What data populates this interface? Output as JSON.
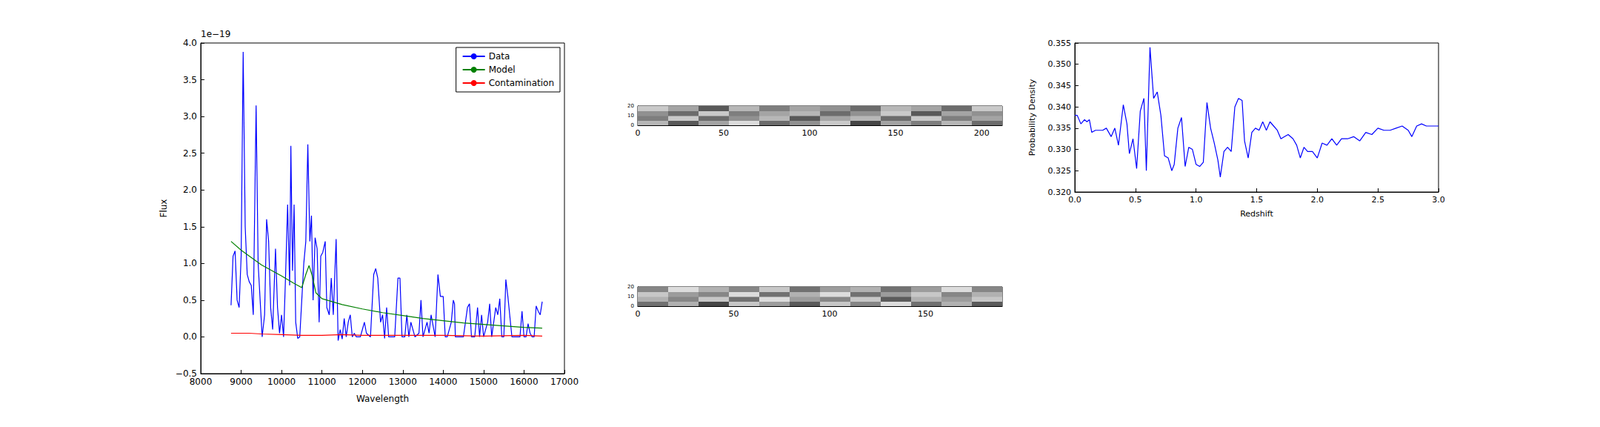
{
  "chart_data": [
    {
      "type": "line",
      "xlabel": "Wavelength",
      "ylabel": "Flux",
      "annotations": [
        {
          "text": "1e−19"
        }
      ],
      "xlim": [
        8000,
        17000
      ],
      "xticks": [
        8000,
        9000,
        10000,
        11000,
        12000,
        13000,
        14000,
        15000,
        16000,
        17000
      ],
      "ylim": [
        -0.5,
        4.0
      ],
      "yticks": [
        {
          "value": -0.5,
          "label": "−0.5"
        },
        {
          "value": 0,
          "label": "0.0"
        },
        0.5,
        {
          "value": 1,
          "label": "1.0"
        },
        1.5,
        {
          "value": 2,
          "label": "2.0"
        },
        2.5,
        {
          "value": 3,
          "label": "3.0"
        },
        3.5,
        {
          "value": 4,
          "label": "4.0"
        }
      ],
      "grid": false,
      "legend": "upper right",
      "series": [
        {
          "name": "Data",
          "color": "#0000ff",
          "x": [
            8750,
            8800,
            8850,
            8900,
            8950,
            9000,
            9050,
            9100,
            9150,
            9200,
            9250,
            9300,
            9370,
            9420,
            9470,
            9520,
            9580,
            9630,
            9680,
            9730,
            9780,
            9850,
            9900,
            9950,
            10000,
            10050,
            10100,
            10150,
            10200,
            10230,
            10270,
            10310,
            10350,
            10400,
            10450,
            10500,
            10550,
            10600,
            10650,
            10700,
            10740,
            10780,
            10830,
            10880,
            10930,
            10970,
            11020,
            11080,
            11120,
            11180,
            11230,
            11280,
            11350,
            11400,
            11450,
            11500,
            11550,
            11600,
            11650,
            11700,
            11750,
            11800,
            11850,
            11950,
            12000,
            12050,
            12100,
            12200,
            12280,
            12330,
            12380,
            12450,
            12500,
            12550,
            12600,
            12650,
            12700,
            12800,
            12880,
            12930,
            12980,
            13050,
            13100,
            13150,
            13200,
            13300,
            13400,
            13450,
            13500,
            13600,
            13650,
            13700,
            13800,
            13870,
            13930,
            14000,
            14050,
            14100,
            14200,
            14250,
            14280,
            14300,
            14400,
            14500,
            14600,
            14650,
            14700,
            14780,
            14850,
            14900,
            14950,
            15000,
            15100,
            15150,
            15200,
            15300,
            15350,
            15400,
            15450,
            15500,
            15550,
            15600,
            15700,
            15800,
            15900,
            15950,
            16000,
            16050,
            16100,
            16150,
            16200,
            16250,
            16300,
            16350,
            16400,
            16450
          ],
          "values": [
            0.43,
            1.1,
            1.17,
            0.5,
            0.4,
            1.1,
            3.88,
            1.5,
            0.85,
            0.75,
            0.7,
            0.3,
            3.15,
            1.0,
            0.5,
            0.0,
            0.3,
            1.6,
            1.3,
            0.4,
            0.1,
            1.2,
            0.4,
            0.05,
            0.3,
            0.0,
            0.85,
            1.8,
            0.7,
            2.6,
            0.9,
            1.8,
            0.2,
            -0.02,
            0.0,
            0.5,
            1.0,
            1.3,
            2.62,
            1.3,
            1.65,
            0.5,
            1.35,
            1.2,
            0.2,
            1.1,
            1.15,
            1.3,
            0.4,
            0.3,
            0.8,
            0.3,
            1.33,
            -0.05,
            0.1,
            -0.03,
            0.25,
            0.0,
            0.2,
            0.3,
            0.0,
            0.05,
            0.0,
            0.0,
            0.1,
            0.2,
            0.05,
            0.0,
            0.85,
            0.93,
            0.8,
            0.2,
            0.3,
            -0.02,
            0.4,
            0.0,
            0.0,
            0.0,
            0.8,
            0.8,
            0.0,
            0.0,
            0.3,
            0.0,
            0.2,
            0.0,
            0.05,
            0.5,
            0.0,
            0.2,
            0.05,
            0.3,
            0.0,
            0.85,
            0.55,
            0.55,
            0.0,
            0.0,
            0.2,
            0.5,
            0.45,
            0.0,
            0.0,
            0.0,
            0.4,
            0.45,
            0.0,
            0.0,
            0.4,
            0.0,
            0.3,
            0.0,
            0.2,
            0.45,
            0.0,
            0.4,
            0.3,
            0.52,
            0.0,
            0.0,
            0.78,
            0.55,
            0.0,
            0.0,
            0.0,
            0.35,
            0.0,
            0.0,
            0.18,
            0.05,
            0.0,
            0.0,
            0.42,
            0.35,
            0.3,
            0.48
          ]
        },
        {
          "name": "Model",
          "color": "#008000",
          "x": [
            8750,
            9000,
            9500,
            10000,
            10300,
            10500,
            10600,
            10680,
            10750,
            10850,
            11000,
            11500,
            12000,
            12500,
            13000,
            13500,
            14000,
            14500,
            15000,
            15500,
            16000,
            16450
          ],
          "values": [
            1.3,
            1.18,
            0.98,
            0.83,
            0.73,
            0.67,
            0.85,
            0.97,
            0.85,
            0.6,
            0.52,
            0.44,
            0.38,
            0.33,
            0.29,
            0.25,
            0.22,
            0.19,
            0.17,
            0.15,
            0.13,
            0.12
          ]
        },
        {
          "name": "Contamination",
          "color": "#ff0000",
          "x": [
            8750,
            9000,
            9200,
            9500,
            10000,
            10500,
            11000,
            11500,
            12000,
            13000,
            14000,
            15000,
            16000,
            16450
          ],
          "values": [
            0.05,
            0.05,
            0.05,
            0.04,
            0.03,
            0.02,
            0.02,
            0.03,
            0.02,
            0.02,
            0.02,
            0.01,
            0.02,
            0.01
          ]
        }
      ]
    },
    {
      "type": "heatmap",
      "xlim": [
        0,
        212
      ],
      "xticks": [
        0,
        50,
        100,
        150,
        200
      ],
      "ylim": [
        0,
        20
      ],
      "yticks": [
        0,
        10,
        20
      ],
      "cells": [
        [
          0.2,
          -0.3,
          0.1,
          0.4,
          -0.2,
          0.0,
          0.3,
          -0.4,
          0.1,
          -0.1,
          0.2,
          -0.2
        ],
        [
          -0.1,
          0.3,
          -0.2,
          0.0,
          0.2,
          -0.3,
          0.1,
          0.2,
          -0.2,
          0.3,
          -0.1,
          0.1
        ],
        [
          0.0,
          -0.2,
          0.3,
          -0.1,
          0.1,
          0.2,
          -0.2,
          0.0,
          0.3,
          -0.3,
          0.1,
          0.0
        ],
        [
          0.3,
          0.1,
          -0.3,
          0.2,
          -0.1,
          0.1,
          0.0,
          -0.2,
          0.2,
          0.1,
          -0.2,
          0.3
        ]
      ]
    },
    {
      "type": "heatmap",
      "xlim": [
        0,
        190
      ],
      "xticks": [
        0,
        50,
        100,
        150
      ],
      "ylim": [
        0,
        20
      ],
      "yticks": [
        0,
        10,
        20
      ],
      "cells": [
        [
          -0.2,
          0.1,
          -0.4,
          0.2,
          0.0,
          -0.3,
          0.2,
          -0.1,
          0.3,
          -0.2,
          0.1,
          -0.3
        ],
        [
          0.1,
          -0.1,
          0.2,
          -0.2,
          0.3,
          0.0,
          -0.1,
          0.2,
          -0.3,
          0.1,
          0.0,
          0.2
        ],
        [
          0.2,
          0.0,
          -0.1,
          0.3,
          -0.2,
          0.1,
          0.3,
          -0.2,
          0.0,
          0.2,
          -0.1,
          0.1
        ],
        [
          -0.1,
          0.3,
          0.1,
          -0.1,
          0.2,
          -0.2,
          0.0,
          0.1,
          -0.2,
          0.0,
          0.3,
          -0.1
        ]
      ]
    },
    {
      "type": "line",
      "xlabel": "Redshift",
      "ylabel": "Probability Density",
      "xlim": [
        0,
        3.0
      ],
      "xticks": [
        {
          "value": 0,
          "label": "0.0"
        },
        0.5,
        {
          "value": 1,
          "label": "1.0"
        },
        1.5,
        {
          "value": 2,
          "label": "2.0"
        },
        2.5,
        {
          "value": 3,
          "label": "3.0"
        }
      ],
      "ylim": [
        0.32,
        0.355
      ],
      "yticks": [
        {
          "value": 0.32,
          "label": "0.320"
        },
        0.325,
        {
          "value": 0.33,
          "label": "0.330"
        },
        0.335,
        {
          "value": 0.34,
          "label": "0.340"
        },
        0.345,
        {
          "value": 0.35,
          "label": "0.350"
        },
        0.355
      ],
      "grid": false,
      "color": "#0000ff",
      "x": [
        0.0,
        0.02,
        0.05,
        0.08,
        0.1,
        0.12,
        0.14,
        0.17,
        0.2,
        0.23,
        0.26,
        0.28,
        0.3,
        0.33,
        0.36,
        0.4,
        0.43,
        0.45,
        0.48,
        0.51,
        0.54,
        0.57,
        0.59,
        0.62,
        0.65,
        0.68,
        0.71,
        0.74,
        0.77,
        0.8,
        0.82,
        0.85,
        0.88,
        0.91,
        0.94,
        0.97,
        1.0,
        1.03,
        1.06,
        1.09,
        1.12,
        1.15,
        1.18,
        1.2,
        1.23,
        1.26,
        1.29,
        1.32,
        1.35,
        1.38,
        1.4,
        1.43,
        1.46,
        1.49,
        1.52,
        1.55,
        1.58,
        1.61,
        1.64,
        1.67,
        1.7,
        1.73,
        1.76,
        1.8,
        1.83,
        1.86,
        1.89,
        1.92,
        1.96,
        2.0,
        2.04,
        2.08,
        2.12,
        2.16,
        2.2,
        2.25,
        2.3,
        2.35,
        2.4,
        2.45,
        2.5,
        2.55,
        2.6,
        2.65,
        2.7,
        2.75,
        2.78,
        2.82,
        2.86,
        2.9,
        2.95,
        3.0
      ],
      "values": [
        0.338,
        0.338,
        0.336,
        0.337,
        0.3365,
        0.337,
        0.334,
        0.3345,
        0.3345,
        0.3345,
        0.335,
        0.334,
        0.333,
        0.335,
        0.331,
        0.3405,
        0.336,
        0.329,
        0.3325,
        0.3255,
        0.339,
        0.342,
        0.325,
        0.354,
        0.342,
        0.3435,
        0.338,
        0.3285,
        0.328,
        0.325,
        0.3265,
        0.335,
        0.3375,
        0.326,
        0.3305,
        0.33,
        0.3265,
        0.326,
        0.327,
        0.341,
        0.335,
        0.3315,
        0.3275,
        0.3235,
        0.3295,
        0.3305,
        0.3295,
        0.34,
        0.342,
        0.3415,
        0.332,
        0.328,
        0.334,
        0.335,
        0.3345,
        0.3365,
        0.3345,
        0.3365,
        0.3355,
        0.3345,
        0.3325,
        0.333,
        0.3335,
        0.3325,
        0.331,
        0.328,
        0.3305,
        0.3295,
        0.3295,
        0.328,
        0.3315,
        0.331,
        0.3325,
        0.331,
        0.3325,
        0.3325,
        0.333,
        0.332,
        0.334,
        0.3335,
        0.335,
        0.3345,
        0.3345,
        0.335,
        0.3355,
        0.3345,
        0.333,
        0.3355,
        0.336,
        0.3355,
        0.3355,
        0.3355
      ]
    }
  ]
}
